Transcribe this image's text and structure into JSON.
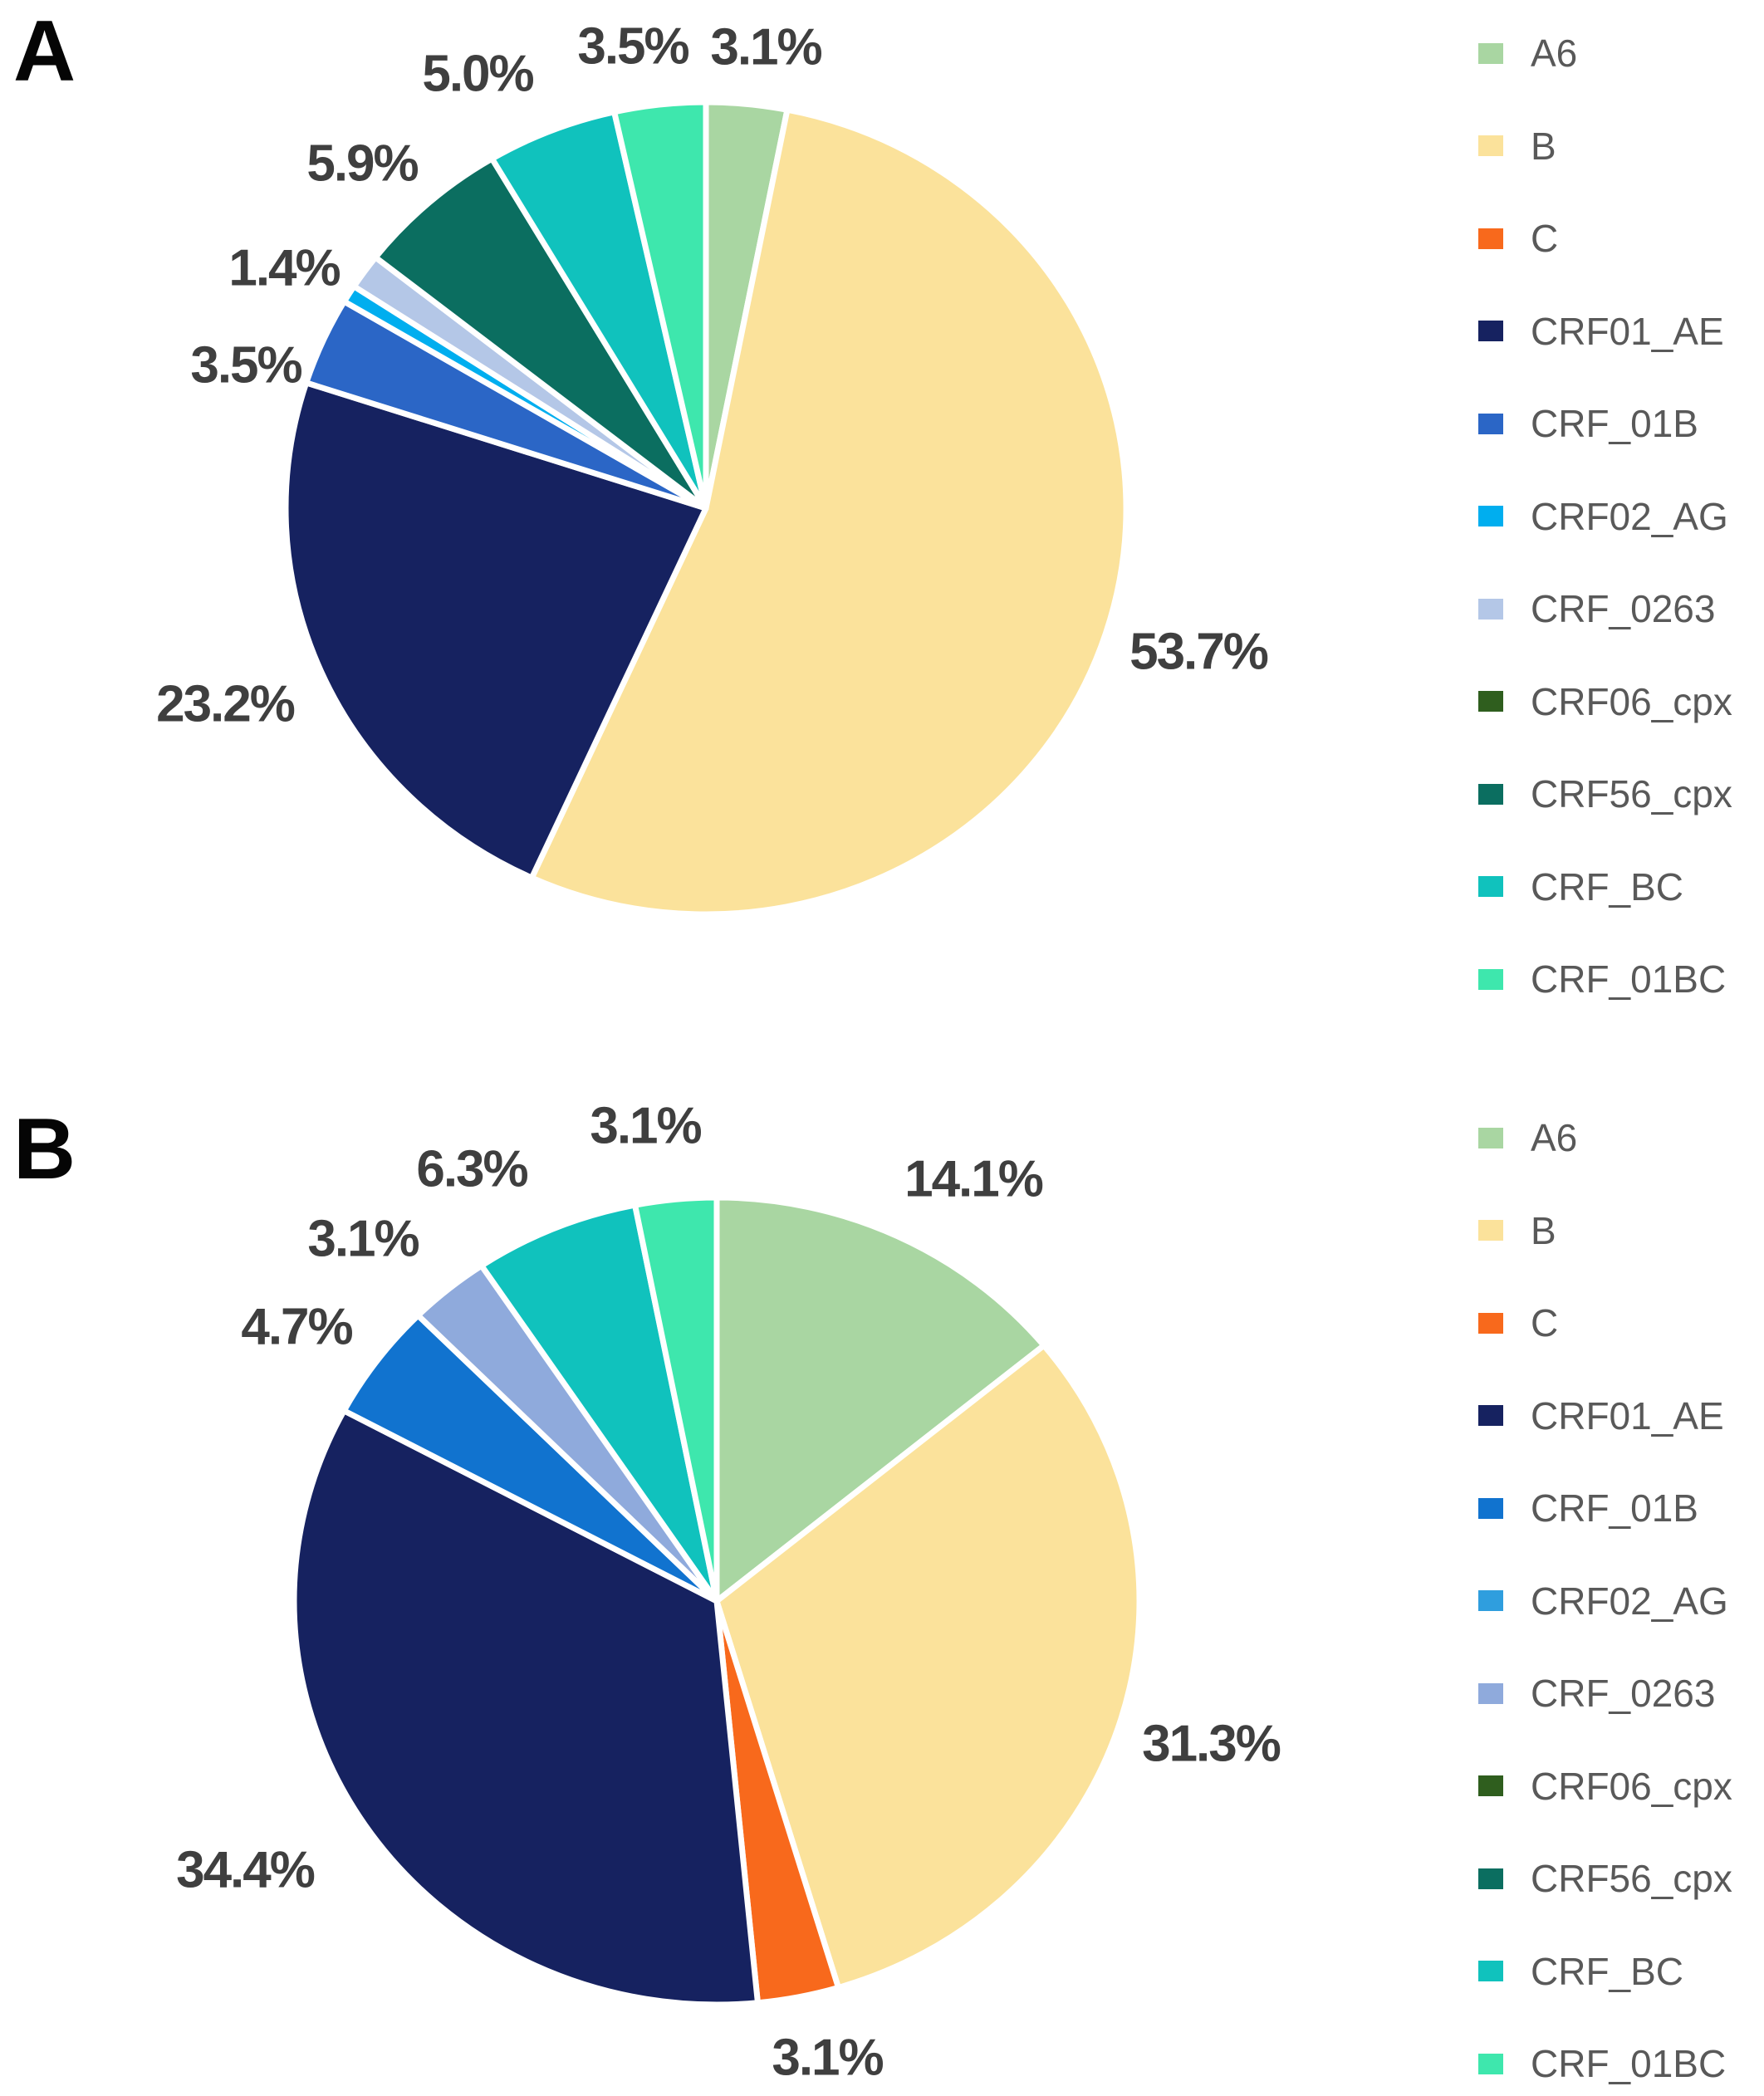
{
  "panels": [
    {
      "id": "A",
      "label": "A"
    },
    {
      "id": "B",
      "label": "B"
    }
  ],
  "chart_data": [
    {
      "type": "pie",
      "panel": "A",
      "start_angle_deg": 0,
      "direction": "clockwise",
      "slice_border_color": "#ffffff",
      "series": [
        {
          "name": "A6",
          "value": 3.1,
          "label_text": "3.1%",
          "color": "#A9D6A2"
        },
        {
          "name": "B",
          "value": 53.7,
          "label_text": "53.7%",
          "color": "#FBE29B"
        },
        {
          "name": "C",
          "value": 0,
          "label_text": null,
          "color": "#F8691C"
        },
        {
          "name": "CRF01_AE",
          "value": 23.2,
          "label_text": "23.2%",
          "color": "#162260"
        },
        {
          "name": "CRF_01B",
          "value": 3.5,
          "label_text": "3.5%",
          "color": "#2B66C6"
        },
        {
          "name": "CRF02_AG",
          "value": 0.7,
          "label_text": null,
          "color": "#00AEEF"
        },
        {
          "name": "CRF_0263",
          "value": 1.4,
          "label_text": "1.4%",
          "color": "#B4C7E7"
        },
        {
          "name": "CRF06_cpx",
          "value": 0,
          "label_text": null,
          "color": "#2F5E1E"
        },
        {
          "name": "CRF56_cpx",
          "value": 5.9,
          "label_text": "5.9%",
          "color": "#0B6E60"
        },
        {
          "name": "CRF_BC",
          "value": 5.0,
          "label_text": "5.0%",
          "color": "#10C2BD"
        },
        {
          "name": "CRF_01BC",
          "value": 3.5,
          "label_text": "3.5%",
          "color": "#3EE7AD"
        }
      ]
    },
    {
      "type": "pie",
      "panel": "B",
      "start_angle_deg": 0,
      "direction": "clockwise",
      "slice_border_color": "#ffffff",
      "series": [
        {
          "name": "A6",
          "value": 14.1,
          "label_text": "14.1%",
          "color": "#A9D6A2"
        },
        {
          "name": "B",
          "value": 31.3,
          "label_text": "31.3%",
          "color": "#FBE29B"
        },
        {
          "name": "C",
          "value": 3.1,
          "label_text": "3.1%",
          "color": "#F8691C"
        },
        {
          "name": "CRF01_AE",
          "value": 34.4,
          "label_text": "34.4%",
          "color": "#162260"
        },
        {
          "name": "CRF_01B",
          "value": 4.7,
          "label_text": "4.7%",
          "color": "#1173CF"
        },
        {
          "name": "CRF02_AG",
          "value": 0,
          "label_text": null,
          "color": "#2F9EDE"
        },
        {
          "name": "CRF_0263",
          "value": 3.1,
          "label_text": "3.1%",
          "color": "#8FAADC"
        },
        {
          "name": "CRF06_cpx",
          "value": 0,
          "label_text": null,
          "color": "#2F5E1E"
        },
        {
          "name": "CRF56_cpx",
          "value": 0,
          "label_text": null,
          "color": "#0B6E60"
        },
        {
          "name": "CRF_BC",
          "value": 6.3,
          "label_text": "6.3%",
          "color": "#10C2BD"
        },
        {
          "name": "CRF_01BC",
          "value": 3.1,
          "label_text": "3.1%",
          "color": "#3EE7AD"
        }
      ]
    }
  ],
  "legends": [
    {
      "panel": "A",
      "items": [
        {
          "label": "A6",
          "color": "#A9D6A2"
        },
        {
          "label": "B",
          "color": "#FBE29B"
        },
        {
          "label": "C",
          "color": "#F8691C"
        },
        {
          "label": "CRF01_AE",
          "color": "#162260"
        },
        {
          "label": "CRF_01B",
          "color": "#2B66C6"
        },
        {
          "label": "CRF02_AG",
          "color": "#00AEEF"
        },
        {
          "label": "CRF_0263",
          "color": "#B4C7E7"
        },
        {
          "label": "CRF06_cpx",
          "color": "#2F5E1E"
        },
        {
          "label": "CRF56_cpx",
          "color": "#0B6E60"
        },
        {
          "label": "CRF_BC",
          "color": "#10C2BD"
        },
        {
          "label": "CRF_01BC",
          "color": "#3EE7AD"
        }
      ]
    },
    {
      "panel": "B",
      "items": [
        {
          "label": "A6",
          "color": "#A9D6A2"
        },
        {
          "label": "B",
          "color": "#FBE29B"
        },
        {
          "label": "C",
          "color": "#F8691C"
        },
        {
          "label": "CRF01_AE",
          "color": "#162260"
        },
        {
          "label": "CRF_01B",
          "color": "#1173CF"
        },
        {
          "label": "CRF02_AG",
          "color": "#2F9EDE"
        },
        {
          "label": "CRF_0263",
          "color": "#8FAADC"
        },
        {
          "label": "CRF06_cpx",
          "color": "#2F5E1E"
        },
        {
          "label": "CRF56_cpx",
          "color": "#0B6E60"
        },
        {
          "label": "CRF_BC",
          "color": "#10C2BD"
        },
        {
          "label": "CRF_01BC",
          "color": "#3EE7AD"
        }
      ]
    }
  ]
}
